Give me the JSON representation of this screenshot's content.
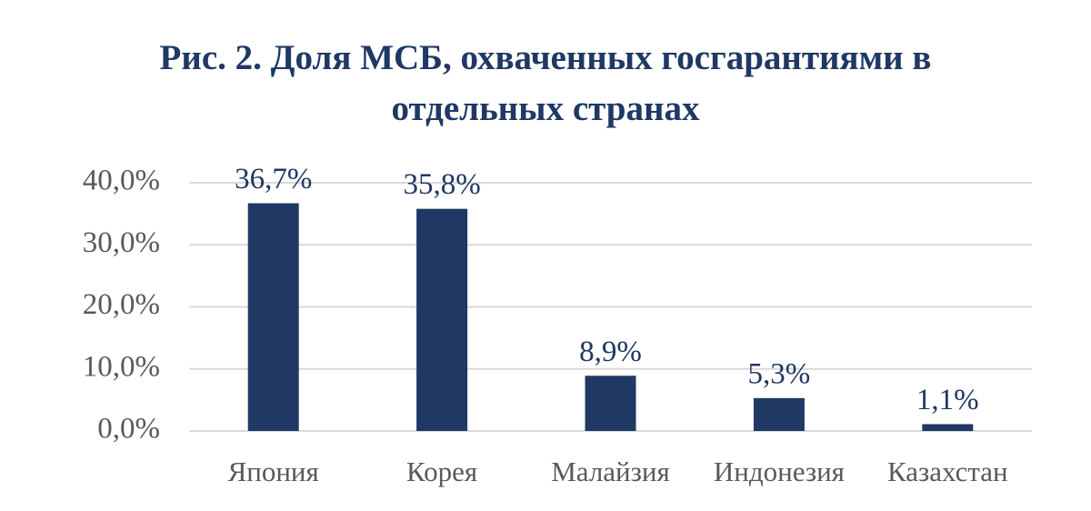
{
  "chart_data": {
    "type": "bar",
    "title": "Рис. 2. Доля МСБ, охваченных госгарантиями в отдельных странах",
    "categories": [
      "Япония",
      "Корея",
      "Малайзия",
      "Индонезия",
      "Казахстан"
    ],
    "values": [
      36.7,
      35.8,
      8.9,
      5.3,
      1.1
    ],
    "value_labels": [
      "36,7%",
      "35,8%",
      "8,9%",
      "5,3%",
      "1,1%"
    ],
    "color": "#1f3864",
    "ylim": [
      0,
      40
    ],
    "yticks": [
      {
        "value": 0,
        "label": "0,0%"
      },
      {
        "value": 10,
        "label": "10,0%"
      },
      {
        "value": 20,
        "label": "20,0%"
      },
      {
        "value": 30,
        "label": "30,0%"
      },
      {
        "value": 40,
        "label": "40,0%"
      }
    ],
    "grid": true
  }
}
